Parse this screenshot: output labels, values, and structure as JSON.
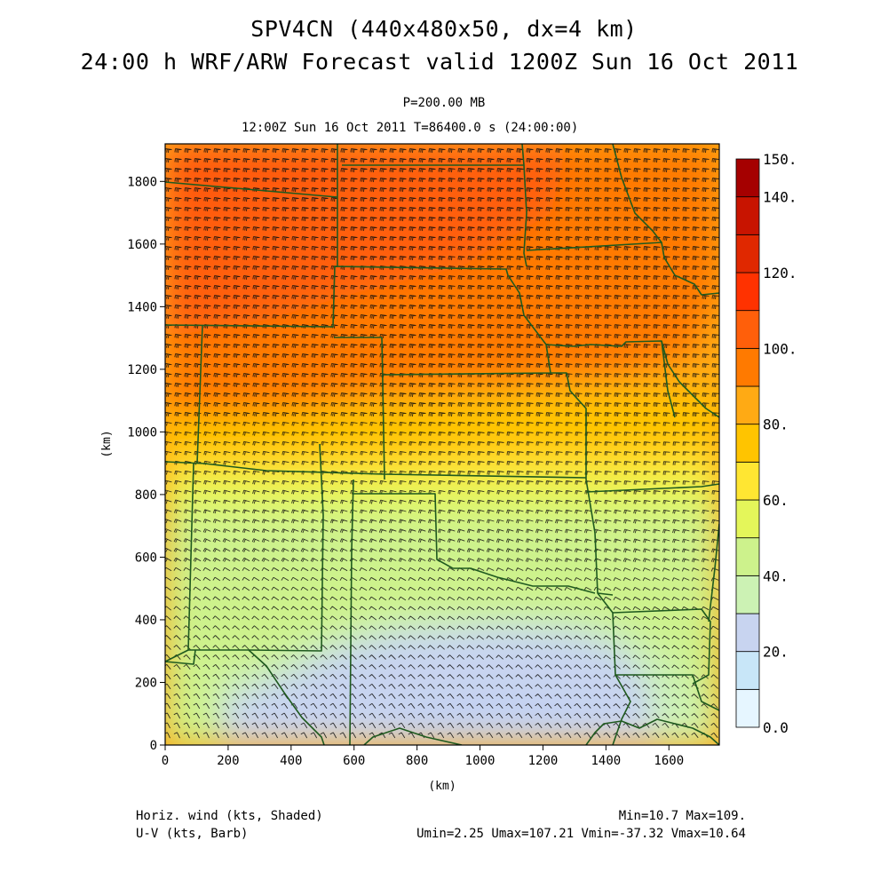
{
  "header": {
    "title_line1": "SPV4CN (440x480x50, dx=4 km)",
    "title_line2": "24:00 h WRF/ARW Forecast valid 1200Z Sun 16 Oct 2011",
    "level": "P=200.00 MB",
    "valid_line": "12:00Z Sun 16 Oct 2011     T=86400.0 s (24:00:00)"
  },
  "chart_data": {
    "type": "heatmap",
    "xlabel": "(km)",
    "ylabel": "(km)",
    "xlim": [
      0,
      1760
    ],
    "ylim": [
      0,
      1920
    ],
    "x_ticks": [
      0,
      200,
      400,
      600,
      800,
      1000,
      1200,
      1400,
      1600
    ],
    "x_tick_labels": [
      "0",
      "200",
      "400",
      "600",
      "800",
      "1000",
      "1200",
      "1400",
      "1600"
    ],
    "y_ticks": [
      0,
      200,
      400,
      600,
      800,
      1000,
      1200,
      1400,
      1600,
      1800
    ],
    "y_tick_labels": [
      "0",
      "200",
      "400",
      "600",
      "800",
      "1000",
      "1200",
      "1400",
      "1600",
      "1800"
    ],
    "colorbar": {
      "levels": [
        0,
        10,
        20,
        30,
        40,
        50,
        60,
        70,
        80,
        90,
        100,
        110,
        120,
        130,
        140,
        150
      ],
      "labels": [
        "0.0",
        "20.",
        "40.",
        "60.",
        "80.",
        "100.",
        "120.",
        "140.",
        "150."
      ],
      "label_values": [
        0,
        20,
        40,
        60,
        80,
        100,
        120,
        140,
        150
      ],
      "colors": [
        "#e6f6ff",
        "#c8e6f8",
        "#c8d4f0",
        "#ccf2b4",
        "#cdf28c",
        "#e4f65a",
        "#ffe632",
        "#ffc400",
        "#ffaa14",
        "#ff7a00",
        "#ff5f0a",
        "#ff3200",
        "#e02800",
        "#c81400",
        "#a50000"
      ]
    },
    "field_description_approx": [
      {
        "region": "south-central (Texas coast / Gulf)",
        "wind_kts": [
          20,
          30
        ]
      },
      {
        "region": "far southwest corner",
        "wind_kts": [
          40,
          50
        ]
      },
      {
        "region": "southern band (south of ~800 km)",
        "wind_kts": [
          40,
          60
        ]
      },
      {
        "region": "central band (~850-1000 km)",
        "wind_kts": [
          60,
          80
        ]
      },
      {
        "region": "northern third",
        "wind_kts": [
          90,
          109
        ]
      }
    ],
    "stats": {
      "min": 10.7,
      "max": 109,
      "umin": 2.25,
      "umax": 107.21,
      "vmin": -37.32,
      "vmax": 10.64
    }
  },
  "footer": {
    "left_line1": "Horiz. wind (kts, Shaded)",
    "left_line2": "U-V (kts, Barb)",
    "right_line1": "Min=10.7 Max=109.",
    "right_line2": "Umin=2.25 Umax=107.21 Vmin=-37.32 Vmax=10.64"
  }
}
